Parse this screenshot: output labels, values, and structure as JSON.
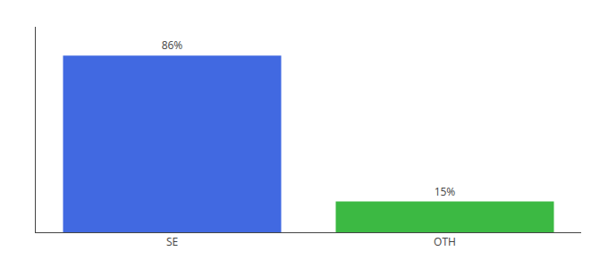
{
  "chart_data": {
    "type": "bar",
    "categories": [
      "SE",
      "OTH"
    ],
    "values": [
      86,
      15
    ],
    "value_labels": [
      "86%",
      "15%"
    ],
    "data_labels": true,
    "colors": [
      "#4169E1",
      "#3CB943"
    ],
    "ylim": [
      0,
      100
    ],
    "grid": false,
    "tick_labels": "x"
  }
}
